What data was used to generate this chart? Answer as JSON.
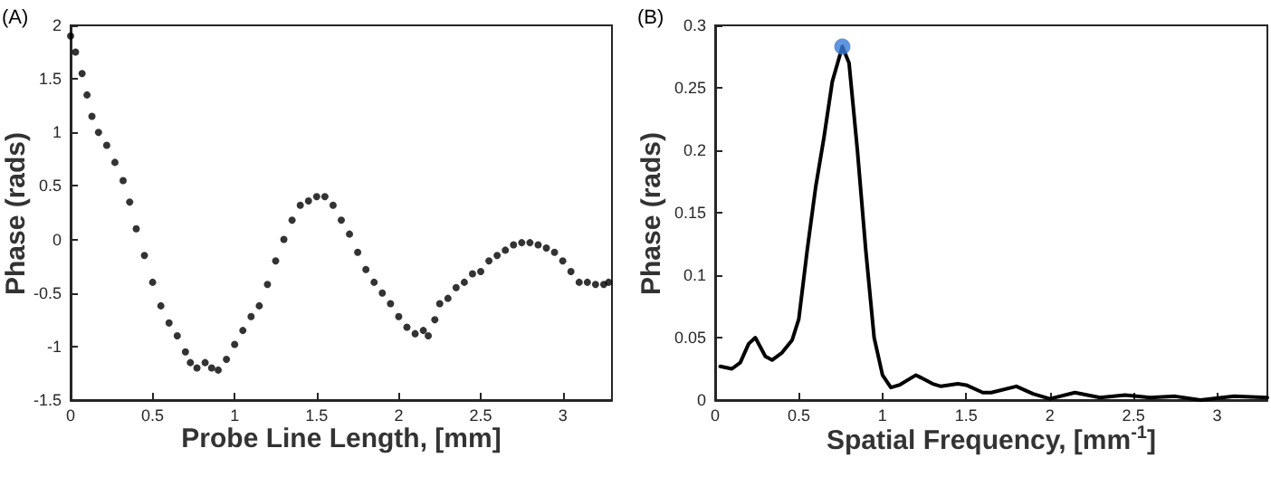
{
  "chart_data": [
    {
      "type": "scatter",
      "title": "(A)",
      "xlabel": "Probe Line Length, [mm]",
      "ylabel": "Phase (rads)",
      "xlim": [
        0,
        3.3
      ],
      "ylim": [
        -1.5,
        2
      ],
      "xticks": [
        0,
        0.5,
        1,
        1.5,
        2,
        2.5,
        3
      ],
      "yticks": [
        -1.5,
        -1,
        -0.5,
        0,
        0.5,
        1,
        1.5,
        2
      ],
      "marker": "circle",
      "series": [
        {
          "color": "#000000",
          "x": [
            0,
            0.03,
            0.07,
            0.1,
            0.13,
            0.17,
            0.22,
            0.27,
            0.32,
            0.36,
            0.4,
            0.45,
            0.5,
            0.55,
            0.6,
            0.65,
            0.7,
            0.73,
            0.77,
            0.82,
            0.86,
            0.9,
            0.95,
            1.0,
            1.05,
            1.1,
            1.15,
            1.2,
            1.25,
            1.3,
            1.35,
            1.4,
            1.45,
            1.5,
            1.55,
            1.6,
            1.65,
            1.7,
            1.75,
            1.8,
            1.85,
            1.9,
            1.95,
            2.0,
            2.05,
            2.1,
            2.15,
            2.18,
            2.22,
            2.25,
            2.3,
            2.35,
            2.4,
            2.45,
            2.5,
            2.55,
            2.6,
            2.65,
            2.7,
            2.75,
            2.8,
            2.85,
            2.9,
            2.95,
            3.0,
            3.05,
            3.1,
            3.15,
            3.2,
            3.25,
            3.28
          ],
          "values": [
            1.9,
            1.75,
            1.55,
            1.35,
            1.15,
            1.0,
            0.88,
            0.72,
            0.55,
            0.35,
            0.1,
            -0.15,
            -0.4,
            -0.62,
            -0.78,
            -0.9,
            -1.05,
            -1.15,
            -1.2,
            -1.15,
            -1.2,
            -1.22,
            -1.12,
            -0.98,
            -0.85,
            -0.72,
            -0.62,
            -0.42,
            -0.2,
            0.0,
            0.18,
            0.32,
            0.36,
            0.4,
            0.4,
            0.32,
            0.18,
            0.05,
            -0.12,
            -0.28,
            -0.4,
            -0.5,
            -0.6,
            -0.72,
            -0.82,
            -0.88,
            -0.85,
            -0.9,
            -0.75,
            -0.6,
            -0.55,
            -0.45,
            -0.4,
            -0.32,
            -0.3,
            -0.2,
            -0.15,
            -0.1,
            -0.05,
            -0.03,
            -0.03,
            -0.05,
            -0.08,
            -0.12,
            -0.2,
            -0.3,
            -0.4,
            -0.4,
            -0.42,
            -0.42,
            -0.4
          ]
        }
      ]
    },
    {
      "type": "line",
      "title": "(B)",
      "xlabel": "Spatial Frequency, [mm$^{-1}$]",
      "ylabel": "Phase (rads)",
      "xlim": [
        0,
        3.3
      ],
      "ylim": [
        0,
        0.3
      ],
      "xticks": [
        0,
        0.5,
        1,
        1.5,
        2,
        2.5,
        3
      ],
      "yticks": [
        0,
        0.05,
        0.1,
        0.15,
        0.2,
        0.25,
        0.3
      ],
      "marker": "none",
      "series": [
        {
          "color": "#000000",
          "x": [
            0.03,
            0.1,
            0.15,
            0.2,
            0.24,
            0.3,
            0.34,
            0.4,
            0.46,
            0.5,
            0.55,
            0.6,
            0.65,
            0.7,
            0.76,
            0.8,
            0.85,
            0.9,
            0.95,
            1.0,
            1.05,
            1.1,
            1.2,
            1.3,
            1.35,
            1.45,
            1.5,
            1.6,
            1.65,
            1.8,
            1.9,
            2.0,
            2.15,
            2.3,
            2.45,
            2.6,
            2.75,
            2.9,
            3.1,
            3.3
          ],
          "values": [
            0.027,
            0.025,
            0.03,
            0.045,
            0.05,
            0.035,
            0.032,
            0.038,
            0.048,
            0.065,
            0.12,
            0.17,
            0.21,
            0.255,
            0.283,
            0.27,
            0.2,
            0.12,
            0.05,
            0.02,
            0.01,
            0.012,
            0.02,
            0.013,
            0.011,
            0.013,
            0.012,
            0.006,
            0.006,
            0.011,
            0.005,
            0.001,
            0.006,
            0.002,
            0.004,
            0.002,
            0.003,
            0.0,
            0.003,
            0.002
          ]
        },
        {
          "type": "scatter",
          "color": "#3a7bd5",
          "marker": "circle",
          "x": [
            0.76
          ],
          "values": [
            0.283
          ]
        }
      ]
    }
  ]
}
